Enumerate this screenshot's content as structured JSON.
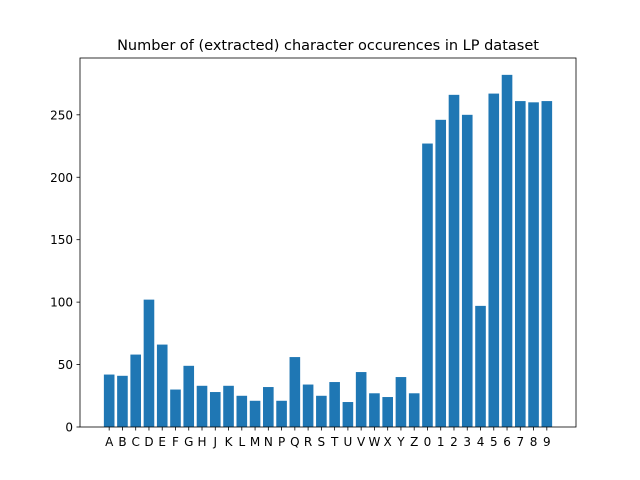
{
  "chart_data": {
    "type": "bar",
    "title": "Number of (extracted) character occurences in LP dataset",
    "xlabel": "",
    "ylabel": "",
    "categories": [
      "A",
      "B",
      "C",
      "D",
      "E",
      "F",
      "G",
      "H",
      "J",
      "K",
      "L",
      "M",
      "N",
      "P",
      "Q",
      "R",
      "S",
      "T",
      "U",
      "V",
      "W",
      "X",
      "Y",
      "Z",
      "0",
      "1",
      "2",
      "3",
      "4",
      "5",
      "6",
      "7",
      "8",
      "9"
    ],
    "values": [
      42,
      41,
      58,
      102,
      66,
      30,
      49,
      33,
      28,
      33,
      25,
      21,
      32,
      21,
      56,
      34,
      25,
      36,
      20,
      44,
      27,
      24,
      40,
      27,
      227,
      246,
      266,
      250,
      97,
      267,
      282,
      261,
      260,
      261
    ],
    "ylim": [
      0,
      295.5
    ],
    "yticks": [
      0,
      50,
      100,
      150,
      200,
      250
    ],
    "ytick_labels": [
      "0",
      "50",
      "100",
      "150",
      "200",
      "250"
    ],
    "grid": false,
    "bar_color": "#1f77b4"
  }
}
